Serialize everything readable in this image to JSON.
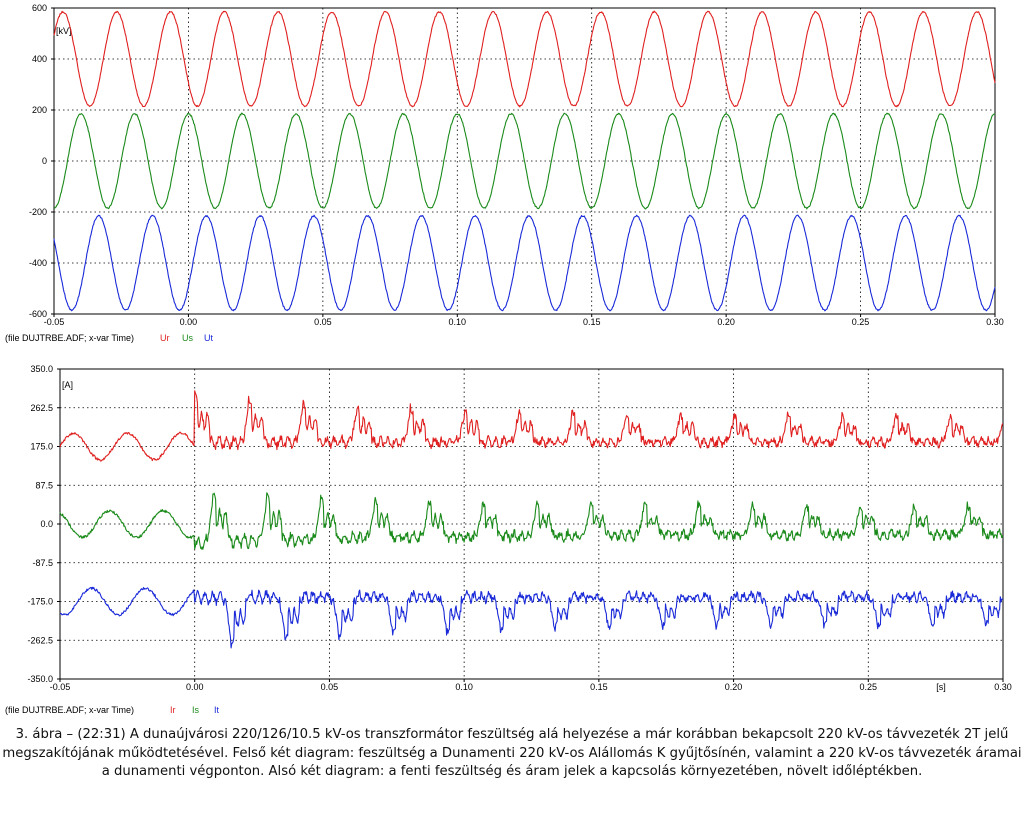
{
  "charts": [
    {
      "unit": "[kV]",
      "file_label": "(file DUJTRBE.ADF; x-var Time)",
      "y_ticks": [
        "600",
        "400",
        "200",
        "0",
        "-200",
        "-400",
        "-600"
      ],
      "x_ticks": [
        "-0.05",
        "0.00",
        "0.05",
        "0.10",
        "0.15",
        "0.20",
        "0.25",
        "0.30"
      ],
      "x_unit": ""
    },
    {
      "unit": "[A]",
      "file_label": "(file DUJTRBE.ADF; x-var Time)",
      "y_ticks": [
        "350.0",
        "262.5",
        "175.0",
        "87.5",
        "0.0",
        "-87.5",
        "-175.0",
        "-262.5",
        "-350.0"
      ],
      "x_ticks": [
        "-0.05",
        "0.00",
        "0.05",
        "0.10",
        "0.15",
        "0.20",
        "0.25",
        "0.30"
      ],
      "x_unit": "[s]"
    }
  ],
  "chart_data": [
    {
      "type": "line",
      "xlabel": "",
      "ylabel": "[kV]",
      "xlim": [
        -0.05,
        0.3
      ],
      "ylim": [
        -600,
        600
      ],
      "grid": true,
      "legend_placement": "bottom-left",
      "series": [
        {
          "name": "Ur",
          "color": "#e02020",
          "offset": 400,
          "amplitude": 185,
          "frequency_hz": 50,
          "phase_deg": 210
        },
        {
          "name": "Us",
          "color": "#1a8a1a",
          "offset": 0,
          "amplitude": 185,
          "frequency_hz": 50,
          "phase_deg": 90
        },
        {
          "name": "Ut",
          "color": "#1a2ad8",
          "offset": -400,
          "amplitude": 185,
          "frequency_hz": 50,
          "phase_deg": -30
        }
      ]
    },
    {
      "type": "line",
      "xlabel": "[s]",
      "ylabel": "[A]",
      "xlim": [
        -0.05,
        0.3
      ],
      "ylim": [
        -350,
        350
      ],
      "grid": true,
      "legend_placement": "bottom-left",
      "switch_time": 0.0,
      "series": [
        {
          "name": "Ir",
          "color": "#e02020",
          "offset": 175,
          "pre_amplitude": 30,
          "inrush_peak": 320,
          "typical_level": 170
        },
        {
          "name": "Is",
          "color": "#1a8a1a",
          "offset": 0,
          "pre_amplitude": 30,
          "inrush_peak": 90,
          "typical_level": 0
        },
        {
          "name": "It",
          "color": "#1a2ad8",
          "offset": -175,
          "pre_amplitude": 30,
          "inrush_min": -325,
          "typical_level": -175
        }
      ]
    }
  ],
  "caption": "3. ábra – (22:31) A dunaújvárosi 220/126/10.5 kV-os transzformátor feszültség alá helyezése a már korábban bekapcsolt 220 kV-os távvezeték 2T jelű megszakítójának működtetésével. Felső két diagram: feszültség a Dunamenti 220 kV-os Alállomás K gyűjtősínén, valamint a 220 kV-os távvezeték áramai a dunamenti végponton. Alsó két diagram: a fenti feszültség és áram jelek a kapcsolás környezetében, növelt időléptékben."
}
